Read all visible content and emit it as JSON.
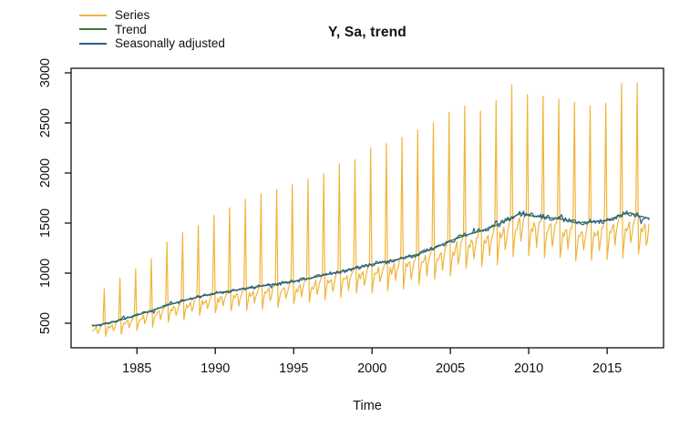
{
  "chart_data": {
    "type": "line",
    "title": "Y, Sa, trend",
    "xlabel": "Time",
    "ylabel": "",
    "x_ticks": [
      1985,
      1990,
      1995,
      2000,
      2005,
      2010,
      2015
    ],
    "y_ticks": [
      500,
      1000,
      1500,
      2000,
      2500,
      3000
    ],
    "x_range": [
      1980.8,
      2018.6
    ],
    "y_range": [
      255,
      3045
    ],
    "grid": false,
    "legend_position": "top-left",
    "frequency": "monthly",
    "time_start": 1982.1667,
    "time_end": 2017.6667,
    "series": [
      {
        "name": "Series",
        "color": "#EFB53C",
        "role": "observed"
      },
      {
        "name": "Trend",
        "color": "#3A7A33",
        "role": "trend"
      },
      {
        "name": "Seasonally adjusted",
        "color": "#2B5F8C",
        "role": "seasonally-adjusted"
      }
    ],
    "trend_anchors": [
      [
        1982,
        470
      ],
      [
        1983,
        495
      ],
      [
        1984,
        535
      ],
      [
        1985,
        580
      ],
      [
        1986,
        630
      ],
      [
        1987,
        682
      ],
      [
        1988,
        726
      ],
      [
        1989,
        766
      ],
      [
        1990,
        800
      ],
      [
        1991,
        823
      ],
      [
        1992,
        848
      ],
      [
        1993,
        872
      ],
      [
        1994,
        894
      ],
      [
        1995,
        918
      ],
      [
        1996,
        948
      ],
      [
        1997,
        982
      ],
      [
        1998,
        1016
      ],
      [
        1999,
        1052
      ],
      [
        2000,
        1088
      ],
      [
        2001,
        1118
      ],
      [
        2002,
        1150
      ],
      [
        2003,
        1192
      ],
      [
        2004,
        1252
      ],
      [
        2005,
        1322
      ],
      [
        2006,
        1380
      ],
      [
        2007,
        1424
      ],
      [
        2008,
        1482
      ],
      [
        2009,
        1560
      ],
      [
        2009.5,
        1598
      ],
      [
        2010,
        1575
      ],
      [
        2011,
        1558
      ],
      [
        2012,
        1542
      ],
      [
        2013,
        1502
      ],
      [
        2014,
        1512
      ],
      [
        2015,
        1528
      ],
      [
        2016,
        1585
      ],
      [
        2016.5,
        1602
      ],
      [
        2017,
        1572
      ],
      [
        2017.75,
        1545
      ]
    ],
    "seasonal_factors_jan_to_nov": [
      0.745,
      0.835,
      0.925,
      0.9,
      0.935,
      0.955,
      0.815,
      0.88,
      0.945,
      0.975,
      1.02
    ],
    "december_peaks": {
      "start_year": 1982,
      "values": [
        840,
        945,
        1040,
        1145,
        1300,
        1390,
        1480,
        1570,
        1650,
        1730,
        1800,
        1830,
        1870,
        1930,
        2000,
        2080,
        2150,
        2230,
        2300,
        2360,
        2420,
        2500,
        2580,
        2660,
        2620,
        2700,
        2900,
        2780,
        2760,
        2740,
        2700,
        2650,
        2680,
        2910,
        2880
      ]
    },
    "noise": {
      "series_pct": 0.05,
      "sa_pct": 0.04,
      "seed": 7
    }
  },
  "axis_color": "#111111",
  "background": "#FFFFFF"
}
